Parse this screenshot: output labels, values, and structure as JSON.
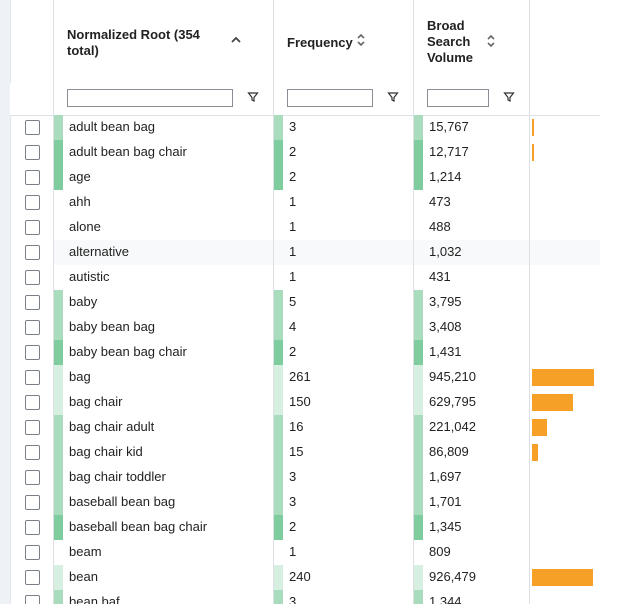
{
  "columns": {
    "root": {
      "title": "Normalized Root (354 total)",
      "sort": "asc"
    },
    "frequency": {
      "title": "Frequency"
    },
    "volume": {
      "title": "Broad Search Volume"
    }
  },
  "filters": {
    "root": "",
    "frequency": "",
    "volume": ""
  },
  "colors": {
    "orange": "#f7a028",
    "green_dark": "#7fcc9f",
    "green_mid": "#a8dcbc",
    "green_light": "#d7efe0"
  },
  "rows": [
    {
      "root": "adult bean bag",
      "frequency": "3",
      "volume": "15,767",
      "bar": 0.02
    },
    {
      "root": "adult bean bag chair",
      "frequency": "2",
      "volume": "12,717",
      "bar": 0.015
    },
    {
      "root": "age",
      "frequency": "2",
      "volume": "1,214",
      "bar": 0
    },
    {
      "root": "ahh",
      "frequency": "1",
      "volume": "473",
      "bar": 0
    },
    {
      "root": "alone",
      "frequency": "1",
      "volume": "488",
      "bar": 0
    },
    {
      "root": "alternative",
      "frequency": "1",
      "volume": "1,032",
      "bar": 0
    },
    {
      "root": "autistic",
      "frequency": "1",
      "volume": "431",
      "bar": 0
    },
    {
      "root": "baby",
      "frequency": "5",
      "volume": "3,795",
      "bar": 0
    },
    {
      "root": "baby bean bag",
      "frequency": "4",
      "volume": "3,408",
      "bar": 0
    },
    {
      "root": "baby bean bag chair",
      "frequency": "2",
      "volume": "1,431",
      "bar": 0
    },
    {
      "root": "bag",
      "frequency": "261",
      "volume": "945,210",
      "bar": 1.0
    },
    {
      "root": "bag chair",
      "frequency": "150",
      "volume": "629,795",
      "bar": 0.666
    },
    {
      "root": "bag chair adult",
      "frequency": "16",
      "volume": "221,042",
      "bar": 0.234
    },
    {
      "root": "bag chair kid",
      "frequency": "15",
      "volume": "86,809",
      "bar": 0.092
    },
    {
      "root": "bag chair toddler",
      "frequency": "3",
      "volume": "1,697",
      "bar": 0
    },
    {
      "root": "baseball bean bag",
      "frequency": "3",
      "volume": "1,701",
      "bar": 0
    },
    {
      "root": "baseball bean bag chair",
      "frequency": "2",
      "volume": "1,345",
      "bar": 0
    },
    {
      "root": "beam",
      "frequency": "1",
      "volume": "809",
      "bar": 0
    },
    {
      "root": "bean",
      "frequency": "240",
      "volume": "926,479",
      "bar": 0.98
    },
    {
      "root": "bean baf",
      "frequency": "3",
      "volume": "1,344",
      "bar": 0
    }
  ]
}
